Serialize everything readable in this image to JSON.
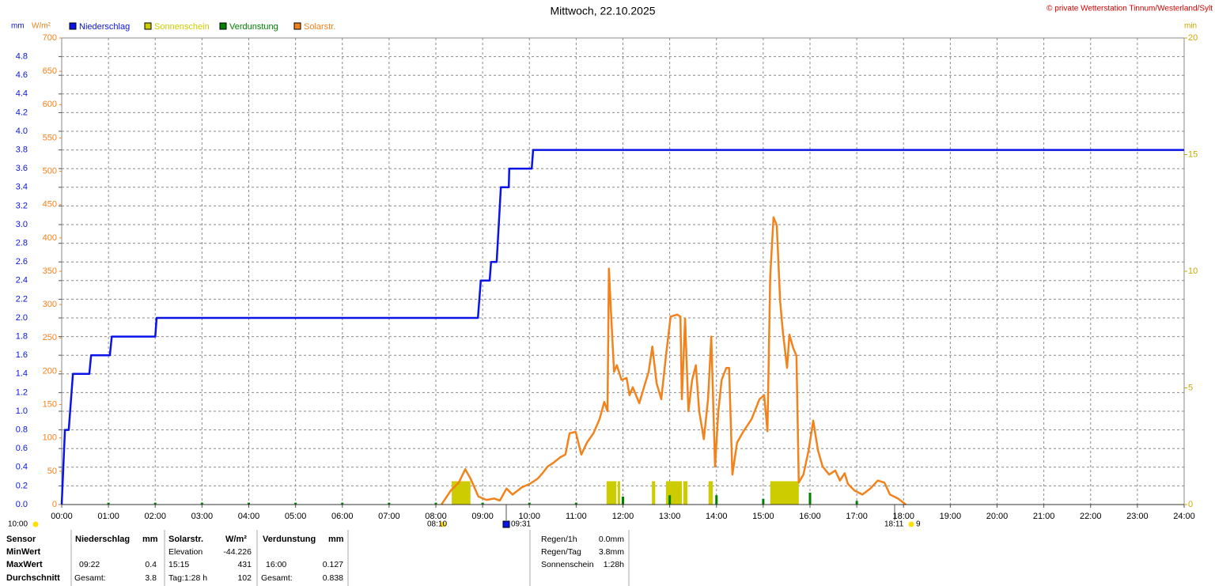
{
  "chart_data": {
    "type": "line",
    "title": "Mittwoch, 22.10.2025",
    "copyright": "© private Wetterstation Tinnum/Westerland/Sylt",
    "units": {
      "left": "mm",
      "left2": "W/m²",
      "right": "min"
    },
    "xlim": [
      0,
      24
    ],
    "xticks": [
      {
        "value": 0,
        "label": "00:00"
      },
      {
        "value": 1,
        "label": "01:00"
      },
      {
        "value": 2,
        "label": "02:00"
      },
      {
        "value": 3,
        "label": "03:00"
      },
      {
        "value": 4,
        "label": "04:00"
      },
      {
        "value": 5,
        "label": "05:00"
      },
      {
        "value": 6,
        "label": "06:00"
      },
      {
        "value": 7,
        "label": "07:00"
      },
      {
        "value": 8,
        "label": "08:00"
      },
      {
        "value": 9,
        "label": "09:00"
      },
      {
        "value": 10,
        "label": "10:00"
      },
      {
        "value": 11,
        "label": "11:00"
      },
      {
        "value": 12,
        "label": "12:00"
      },
      {
        "value": 13,
        "label": "13:00"
      },
      {
        "value": 14,
        "label": "14:00"
      },
      {
        "value": 15,
        "label": "15:00"
      },
      {
        "value": 16,
        "label": "16:00"
      },
      {
        "value": 17,
        "label": "17:00"
      },
      {
        "value": 18,
        "label": "18:00"
      },
      {
        "value": 19,
        "label": "19:00"
      },
      {
        "value": 20,
        "label": "20:00"
      },
      {
        "value": 21,
        "label": "21:00"
      },
      {
        "value": 22,
        "label": "22:00"
      },
      {
        "value": 23,
        "label": "23:00"
      },
      {
        "value": 24,
        "label": "24:00"
      }
    ],
    "ylim": [
      0,
      5
    ],
    "yticks": [
      {
        "value": 0,
        "label": "0.0"
      },
      0.2,
      0.4,
      0.6,
      0.8,
      {
        "value": 1,
        "label": "1.0"
      },
      1.2,
      1.4,
      1.6,
      1.8,
      {
        "value": 2,
        "label": "2.0"
      },
      2.2,
      2.4,
      2.6,
      2.8,
      {
        "value": 3,
        "label": "3.0"
      },
      3.2,
      3.4,
      3.6,
      3.8,
      {
        "value": 4,
        "label": "4.0"
      },
      4.2,
      4.4,
      4.6,
      4.8
    ],
    "y3lim": [
      0,
      700
    ],
    "y3ticks": [
      0,
      50,
      100,
      150,
      200,
      250,
      300,
      350,
      400,
      450,
      500,
      550,
      600,
      650,
      700
    ],
    "y2lim": [
      0,
      20
    ],
    "y2ticks": [
      0,
      5,
      10,
      15,
      20
    ],
    "grid": true,
    "legend": "top-left",
    "series": [
      {
        "name": "Niederschlag",
        "kind": "line",
        "axis": "y",
        "color": "#0a14e6",
        "x": [
          0,
          0.07,
          0.15,
          0.24,
          0.59,
          0.63,
          1.03,
          1.07,
          2.0,
          2.03,
          8.9,
          8.93,
          8.96,
          9.15,
          9.18,
          9.3,
          9.39,
          9.56,
          9.57,
          10.05,
          10.08,
          24
        ],
        "values": [
          0,
          0.8,
          0.8,
          1.4,
          1.4,
          1.6,
          1.6,
          1.8,
          1.8,
          2.0,
          2.0,
          2.2,
          2.4,
          2.4,
          2.6,
          2.6,
          3.4,
          3.4,
          3.6,
          3.6,
          3.8,
          3.8
        ]
      },
      {
        "name": "Sonnenschein",
        "kind": "bar",
        "axis": "y2",
        "color": "#cccc00",
        "x": [
          8.34,
          11.65,
          11.89,
          12.62,
          12.92,
          13.29,
          13.83,
          15.15
        ],
        "x_end": [
          8.74,
          11.86,
          11.94,
          12.69,
          13.26,
          13.38,
          13.92,
          15.76
        ],
        "values": [
          1,
          1,
          1,
          1,
          1,
          1,
          1,
          1
        ]
      },
      {
        "name": "Verdunstung",
        "kind": "bar",
        "axis": "y",
        "color": "#008000",
        "x": [
          1,
          2,
          3,
          4,
          5,
          6,
          7,
          8,
          9,
          10,
          11,
          12,
          13,
          14,
          15,
          16,
          17
        ],
        "values": [
          0.02,
          0.02,
          0.02,
          0.02,
          0.02,
          0.02,
          0.02,
          0.02,
          0.02,
          0.02,
          0.02,
          0.085,
          0.1,
          0.1,
          0.06,
          0.127,
          0.04
        ]
      },
      {
        "name": "Solarstr.",
        "kind": "line",
        "axis": "y3",
        "color": "#f2821b",
        "x": [
          8.12,
          8.32,
          8.49,
          8.63,
          8.74,
          8.91,
          9.08,
          9.25,
          9.37,
          9.51,
          9.64,
          9.84,
          10.01,
          10.18,
          10.28,
          10.39,
          10.52,
          10.66,
          10.77,
          10.86,
          10.99,
          11.11,
          11.23,
          11.37,
          11.5,
          11.6,
          11.67,
          11.7,
          11.75,
          11.81,
          11.87,
          11.97,
          12.08,
          12.14,
          12.21,
          12.35,
          12.45,
          12.55,
          12.63,
          12.72,
          12.82,
          12.92,
          13.02,
          13.16,
          13.23,
          13.26,
          13.33,
          13.4,
          13.48,
          13.56,
          13.63,
          13.73,
          13.82,
          13.89,
          13.97,
          14.04,
          14.11,
          14.21,
          14.27,
          14.34,
          14.44,
          14.58,
          14.75,
          14.92,
          15.02,
          15.09,
          15.15,
          15.22,
          15.29,
          15.36,
          15.42,
          15.51,
          15.56,
          15.64,
          15.71,
          15.76,
          15.86,
          15.97,
          16.07,
          16.17,
          16.27,
          16.41,
          16.54,
          16.64,
          16.74,
          16.81,
          16.95,
          17.12,
          17.29,
          17.45,
          17.59,
          17.71,
          17.88,
          18.05
        ],
        "values": [
          0,
          21,
          33,
          53,
          39,
          12,
          7,
          9,
          6,
          24,
          15,
          26,
          31,
          39,
          47,
          57,
          63,
          71,
          75,
          107,
          109,
          75,
          93,
          107,
          128,
          154,
          140,
          354,
          282,
          199,
          209,
          187,
          190,
          164,
          176,
          152,
          176,
          199,
          237,
          182,
          158,
          223,
          282,
          285,
          282,
          158,
          279,
          140,
          187,
          209,
          140,
          98,
          158,
          252,
          57,
          140,
          187,
          205,
          205,
          45,
          93,
          110,
          128,
          158,
          164,
          110,
          342,
          431,
          419,
          306,
          259,
          205,
          255,
          235,
          223,
          33,
          45,
          81,
          126,
          81,
          57,
          45,
          51,
          36,
          47,
          31,
          21,
          15,
          24,
          36,
          33,
          15,
          9,
          0
        ]
      }
    ],
    "annotations": [
      "10:00",
      "08:10",
      "09:31",
      "18:11",
      "9"
    ]
  },
  "table": {
    "header": [
      "Sensor",
      "Niederschlag",
      "mm",
      "Solarstr.",
      "W/m²",
      "Verdunstung",
      "mm"
    ],
    "rows": [
      {
        "label": "MinWert",
        "solar_time": "Elevation",
        "solar_value": "-44.226"
      },
      {
        "label": "MaxWert",
        "rain_time": "09:22",
        "rain_value": "0.4",
        "solar_time": "15:15",
        "solar_value": "431",
        "evap_time": "16:00",
        "evap_value": "0.127"
      },
      {
        "label": "Durchschnitt",
        "rain_time": "Gesamt:",
        "rain_value": "3.8",
        "solar_time": "Tag:1:28 h",
        "solar_value": "102",
        "evap_time": "Gesamt:",
        "evap_value": "0.838"
      }
    ]
  },
  "summary": [
    {
      "label": "Regen/1h",
      "value": "0.0mm"
    },
    {
      "label": "Regen/Tag",
      "value": "3.8mm"
    },
    {
      "label": "Sonnenschein",
      "value": "1:28h"
    }
  ]
}
